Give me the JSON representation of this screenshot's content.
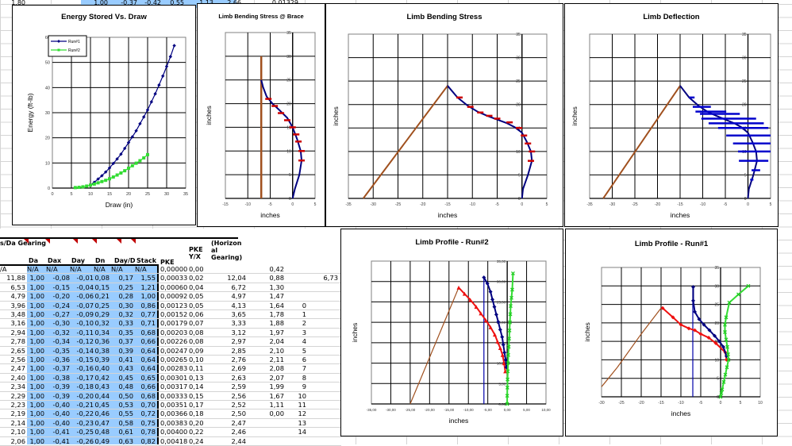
{
  "top_row": {
    "values": [
      "1,80",
      "1,00",
      "-0,37",
      "-0,42",
      "0,55",
      "1,13",
      "2,66",
      "0,01329"
    ]
  },
  "table": {
    "headers": {
      "gearing": "s/Da Gearing",
      "da": "Da",
      "dax": "Dax",
      "day": "Day",
      "dn": "Dn",
      "dayd": "Day/D",
      "stack": "Stack",
      "pke": "PKE",
      "pkeyx": "PKE Y/X",
      "horiz": "(Horizon al Gearing)"
    },
    "na_row": [
      "/A",
      "N/A",
      "N/A",
      "N/A",
      "N/A",
      "N/A",
      "N/A",
      "0,00000",
      "0,00",
      "",
      "0,42",
      "",
      ""
    ],
    "rows": [
      [
        "11,88",
        "1,00",
        "-0,08",
        "-0,01",
        "0,08",
        "0,17",
        "1,55",
        "0,00033",
        "0,02",
        "12,04",
        "0,88",
        "",
        "6,73"
      ],
      [
        "6,53",
        "1,00",
        "-0,15",
        "-0,04",
        "0,15",
        "0,25",
        "1,21",
        "0,00060",
        "0,04",
        "6,72",
        "1,30",
        "",
        ""
      ],
      [
        "4,79",
        "1,00",
        "-0,20",
        "-0,06",
        "0,21",
        "0,28",
        "1,00",
        "0,00092",
        "0,05",
        "4,97",
        "1,47",
        "",
        ""
      ],
      [
        "3,96",
        "1,00",
        "-0,24",
        "-0,07",
        "0,25",
        "0,30",
        "0,86",
        "0,00123",
        "0,05",
        "4,13",
        "1,64",
        "0",
        ""
      ],
      [
        "3,48",
        "1,00",
        "-0,27",
        "-0,09",
        "0,29",
        "0,32",
        "0,77",
        "0,00152",
        "0,06",
        "3,65",
        "1,78",
        "1",
        ""
      ],
      [
        "3,16",
        "1,00",
        "-0,30",
        "-0,10",
        "0,32",
        "0,33",
        "0,71",
        "0,00179",
        "0,07",
        "3,33",
        "1,88",
        "2",
        ""
      ],
      [
        "2,94",
        "1,00",
        "-0,32",
        "-0,11",
        "0,34",
        "0,35",
        "0,68",
        "0,00203",
        "0,08",
        "3,12",
        "1,97",
        "3",
        ""
      ],
      [
        "2,78",
        "1,00",
        "-0,34",
        "-0,12",
        "0,36",
        "0,37",
        "0,66",
        "0,00226",
        "0,08",
        "2,97",
        "2,04",
        "4",
        ""
      ],
      [
        "2,65",
        "1,00",
        "-0,35",
        "-0,14",
        "0,38",
        "0,39",
        "0,64",
        "0,00247",
        "0,09",
        "2,85",
        "2,10",
        "5",
        ""
      ],
      [
        "2,56",
        "1,00",
        "-0,36",
        "-0,15",
        "0,39",
        "0,41",
        "0,64",
        "0,00265",
        "0,10",
        "2,76",
        "2,11",
        "6",
        ""
      ],
      [
        "2,47",
        "1,00",
        "-0,37",
        "-0,16",
        "0,40",
        "0,43",
        "0,64",
        "0,00283",
        "0,11",
        "2,69",
        "2,08",
        "7",
        ""
      ],
      [
        "2,40",
        "1,00",
        "-0,38",
        "-0,17",
        "0,42",
        "0,45",
        "0,65",
        "0,00301",
        "0,13",
        "2,63",
        "2,07",
        "8",
        ""
      ],
      [
        "2,34",
        "1,00",
        "-0,39",
        "-0,18",
        "0,43",
        "0,48",
        "0,66",
        "0,00317",
        "0,14",
        "2,59",
        "1,99",
        "9",
        ""
      ],
      [
        "2,29",
        "1,00",
        "-0,39",
        "-0,20",
        "0,44",
        "0,50",
        "0,68",
        "0,00333",
        "0,15",
        "2,56",
        "1,67",
        "10",
        ""
      ],
      [
        "2,23",
        "1,00",
        "-0,40",
        "-0,21",
        "0,45",
        "0,53",
        "0,70",
        "0,00351",
        "0,17",
        "2,52",
        "1,11",
        "11",
        ""
      ],
      [
        "2,19",
        "1,00",
        "-0,40",
        "-0,22",
        "0,46",
        "0,55",
        "0,72",
        "0,00366",
        "0,18",
        "2,50",
        "0,00",
        "12",
        ""
      ],
      [
        "2,14",
        "1,00",
        "-0,40",
        "-0,23",
        "0,47",
        "0,58",
        "0,75",
        "0,00383",
        "0,20",
        "2,47",
        "",
        "13",
        ""
      ],
      [
        "2,10",
        "1,00",
        "-0,41",
        "-0,25",
        "0,48",
        "0,61",
        "0,78",
        "0,00400",
        "0,22",
        "2,46",
        "",
        "14",
        ""
      ],
      [
        "2,06",
        "1,00",
        "-0,41",
        "-0,26",
        "0,49",
        "0,63",
        "0,82",
        "0,00418",
        "0,24",
        "2,44",
        "",
        "",
        ""
      ]
    ]
  },
  "colors": {
    "navy": "#000080",
    "green": "#33dd33",
    "red": "#ee1111",
    "brown": "#a0501e",
    "cellblue": "#99ccff"
  },
  "chart_data": [
    {
      "id": "energy",
      "type": "line",
      "title": "Energy Stored Vs. Draw",
      "xlabel": "Draw (in)",
      "ylabel": "Energy (ft-lb)",
      "xlim": [
        0,
        35
      ],
      "ylim": [
        0,
        60
      ],
      "xticks": [
        "0",
        "5",
        "10",
        "15",
        "20",
        "25",
        "30",
        "35"
      ],
      "yticks": [
        "0",
        "10",
        "20",
        "30",
        "40",
        "50",
        "60"
      ],
      "legend": "top-left",
      "series": [
        {
          "name": "Run#1",
          "x": [
            10,
            11,
            12,
            13,
            14,
            15,
            16,
            17,
            18,
            19,
            20,
            21,
            22,
            23,
            24,
            25,
            26,
            27,
            28,
            29,
            30,
            31,
            32
          ],
          "y": [
            1.2,
            2.3,
            3.6,
            4.9,
            6.4,
            8.0,
            9.8,
            11.6,
            13.5,
            15.8,
            18.1,
            20.4,
            22.8,
            25.6,
            28.3,
            31.1,
            34.3,
            37.5,
            41.0,
            44.6,
            48.4,
            52.3,
            56.7
          ]
        },
        {
          "name": "Run#2",
          "x": [
            6,
            7,
            8,
            9,
            10,
            11,
            12,
            13,
            14,
            15,
            16,
            17,
            18,
            19,
            20,
            21,
            22,
            23,
            24,
            25
          ],
          "y": [
            0.2,
            0.3,
            0.5,
            0.8,
            1.2,
            1.6,
            2.1,
            2.6,
            3.1,
            3.7,
            4.4,
            5.2,
            6.0,
            6.9,
            7.9,
            8.9,
            9.9,
            10.9,
            12.0,
            13.3
          ]
        }
      ]
    },
    {
      "id": "brace",
      "type": "line",
      "title": "Limb Bending Stress @ Brace",
      "xlabel": "inches",
      "ylabel": "inches",
      "xlim": [
        -15,
        5
      ],
      "ylim": [
        0,
        35
      ],
      "xticks": [
        "-15",
        "-10",
        "-5",
        "0",
        "5"
      ],
      "yticks": [
        "0",
        "5",
        "10",
        "15",
        "20",
        "25",
        "30",
        "35"
      ],
      "series": [
        {
          "name": "string",
          "x": [
            -7,
            -7
          ],
          "y": [
            0,
            30
          ]
        },
        {
          "name": "limb",
          "x": [
            0,
            0.5,
            1.5,
            2,
            1.8,
            1,
            0,
            -1.2,
            -2.8,
            -4.5,
            -5.8,
            -6.6,
            -7
          ],
          "y": [
            0,
            2,
            5,
            8,
            10,
            12.5,
            15,
            17,
            18.5,
            20,
            21.5,
            23.5,
            25
          ]
        },
        {
          "name": "stress",
          "x": [
            2,
            2,
            1.3,
            0.8,
            0,
            -1.2,
            -2.6,
            -4,
            -5.4
          ],
          "y": [
            8,
            10,
            12,
            13.5,
            15,
            16.5,
            18,
            19.5,
            21
          ]
        }
      ]
    },
    {
      "id": "stress",
      "type": "line",
      "title": "Limb Bending Stress",
      "xlabel": "inches",
      "ylabel": "inches",
      "xlim": [
        -35,
        5
      ],
      "ylim": [
        0,
        35
      ],
      "xticks": [
        "-35",
        "-30",
        "-25",
        "-20",
        "-15",
        "-10",
        "-5",
        "0",
        "5"
      ],
      "yticks": [
        "0",
        "5",
        "10",
        "15",
        "20",
        "25",
        "30",
        "35"
      ],
      "series": [
        {
          "name": "string",
          "x": [
            -32,
            -15
          ],
          "y": [
            0,
            24
          ]
        },
        {
          "name": "limb",
          "x": [
            0,
            0.2,
            1.2,
            2,
            1.8,
            1,
            0,
            -1.5,
            -3,
            -5,
            -7,
            -9,
            -11,
            -13,
            -15
          ],
          "y": [
            0,
            2,
            5,
            8,
            10,
            12,
            14,
            15.2,
            16,
            16.8,
            17.6,
            18.5,
            19.8,
            21.5,
            24
          ]
        },
        {
          "name": "stress",
          "x": [
            1.8,
            2,
            1.2,
            0.4,
            -0.6,
            -2.5,
            -5,
            -6.6,
            -8.4,
            -10.4,
            -12.6
          ],
          "y": [
            8,
            10,
            11.7,
            13.4,
            15,
            16.2,
            17,
            17.6,
            18.3,
            19.5,
            21.5
          ]
        }
      ]
    },
    {
      "id": "deflection",
      "type": "line",
      "title": "Limb Deflection",
      "xlabel": "inches",
      "ylabel": "inches",
      "xlim": [
        -35,
        5
      ],
      "ylim": [
        0,
        35
      ],
      "xticks": [
        "-35",
        "-30",
        "-25",
        "-20",
        "-15",
        "-10",
        "-5",
        "0",
        "5"
      ],
      "yticks": [
        "0",
        "5",
        "10",
        "15",
        "20",
        "25",
        "30",
        "35"
      ],
      "series": [
        {
          "name": "string",
          "x": [
            -32,
            -15
          ],
          "y": [
            0,
            24
          ]
        },
        {
          "name": "limb",
          "x": [
            0,
            0.2,
            1.2,
            2,
            1.8,
            1,
            0,
            -1.5,
            -3,
            -5,
            -7,
            -9,
            -11,
            -13,
            -15
          ],
          "y": [
            0,
            2,
            5,
            8,
            10,
            12,
            14,
            15.2,
            16,
            16.8,
            17.6,
            18.5,
            19.8,
            21.5,
            24
          ]
        },
        {
          "name": "deflection-bars",
          "x1": [
            0.5,
            0.8,
            -2,
            -2.2,
            -3.3,
            -4.8,
            -6.6,
            -8.7,
            -10.3,
            -10.6,
            -11.6,
            -12.2,
            -13
          ],
          "x2": [
            1.2,
            2.7,
            4.5,
            5,
            5,
            5,
            4.5,
            3.5,
            1.8,
            -1.8,
            -4.8,
            -8.2,
            -11.8
          ],
          "y": [
            4,
            6,
            8,
            10,
            11.7,
            13.4,
            15,
            16,
            17,
            18,
            18.5,
            19.5,
            21.5
          ]
        }
      ]
    },
    {
      "id": "profile2",
      "type": "line",
      "title": "Limb Profile - Run#2",
      "xlabel": "inches",
      "ylabel": "inches",
      "xlim": [
        -35,
        10
      ],
      "ylim": [
        0,
        35
      ],
      "xticks": [
        "-35,00",
        "-30,00",
        "-25,00",
        "-20,00",
        "-15,00",
        "-10,00",
        "-5,00",
        "0,00",
        "5,00",
        "10,00"
      ],
      "yticks": [
        "0,00",
        "5,00",
        "10,00",
        "15,00",
        "20,00",
        "25,00",
        "30,00",
        "35,00"
      ],
      "series": [
        {
          "name": "string",
          "x": [
            -25,
            -12.5
          ],
          "y": [
            0,
            28.5
          ]
        },
        {
          "name": "vline",
          "x": [
            -6,
            -6
          ],
          "y": [
            0,
            31
          ]
        },
        {
          "name": "red",
          "x": [
            -0.5,
            -0.8,
            -1.2,
            -1.8,
            -2.5,
            -3.2,
            -4.3,
            -5.5,
            -6.8,
            -8,
            -9.5,
            -11,
            -12.5
          ],
          "y": [
            8,
            10,
            12,
            13.7,
            15.3,
            17,
            18.8,
            20.5,
            22.2,
            23.8,
            25.5,
            27,
            28.5
          ]
        },
        {
          "name": "navy",
          "x": [
            -0.2,
            -0.4,
            -0.7,
            -1,
            -1.3,
            -1.8,
            -2.3,
            -2.8,
            -3.3,
            -3.8,
            -4.3,
            -5.1,
            -6
          ],
          "y": [
            9,
            10.8,
            12.6,
            14.5,
            16.4,
            18.2,
            20.1,
            21.9,
            23.8,
            25.6,
            27.5,
            29.5,
            31
          ]
        },
        {
          "name": "green",
          "x": [
            0,
            0,
            0.05,
            0.1,
            0.15,
            0.2,
            0.3,
            0.4,
            0.5,
            0.6,
            0.7,
            0.8,
            0.9,
            1.1,
            1.3,
            1.5
          ],
          "y": [
            0,
            2,
            4,
            6,
            8,
            10,
            12,
            14,
            16,
            18,
            20,
            22,
            24,
            26,
            28,
            32
          ]
        }
      ]
    },
    {
      "id": "profile1",
      "type": "line",
      "title": "Limb Profile - Run#1",
      "xlabel": "inches",
      "ylabel": "inches",
      "xlim": [
        -30,
        10
      ],
      "ylim": [
        0,
        35
      ],
      "xticks": [
        "-30",
        "-25",
        "-20",
        "-15",
        "-10",
        "-5",
        "0",
        "5",
        "10"
      ],
      "yticks": [
        "0",
        "5",
        "10",
        "15",
        "20",
        "25",
        "30",
        "35"
      ],
      "series": [
        {
          "name": "string",
          "x": [
            -30,
            -26,
            -20,
            -15
          ],
          "y": [
            2.7,
            8,
            17,
            24
          ]
        },
        {
          "name": "vline",
          "x": [
            -7,
            -7
          ],
          "y": [
            0,
            30
          ]
        },
        {
          "name": "red",
          "x": [
            1.5,
            1.2,
            -1.2,
            -3,
            -5,
            -6.5,
            -8,
            -10,
            -12,
            -14.6
          ],
          "y": [
            10,
            12,
            14.5,
            16,
            17,
            18,
            18.5,
            19.5,
            21.5,
            24
          ]
        },
        {
          "name": "navy",
          "x": [
            1.5,
            0.7,
            -0.3,
            -1.5,
            -2.8,
            -4.2,
            -5.4,
            -6.5,
            -6.9,
            -6.9
          ],
          "y": [
            11,
            13.5,
            15,
            16.5,
            18,
            19.5,
            21,
            23,
            26,
            29.7
          ]
        },
        {
          "name": "green",
          "x": [
            0,
            0.2,
            0.4,
            0.8,
            1.2,
            1.6,
            2,
            1.9,
            1.7,
            1.4,
            1.1,
            1.1,
            1.4,
            2.2,
            4.5,
            7
          ],
          "y": [
            0,
            1,
            2,
            4,
            6,
            8,
            10,
            11.5,
            13.5,
            15.5,
            17.5,
            19.5,
            21.5,
            25.5,
            27.7,
            30
          ]
        }
      ]
    }
  ]
}
